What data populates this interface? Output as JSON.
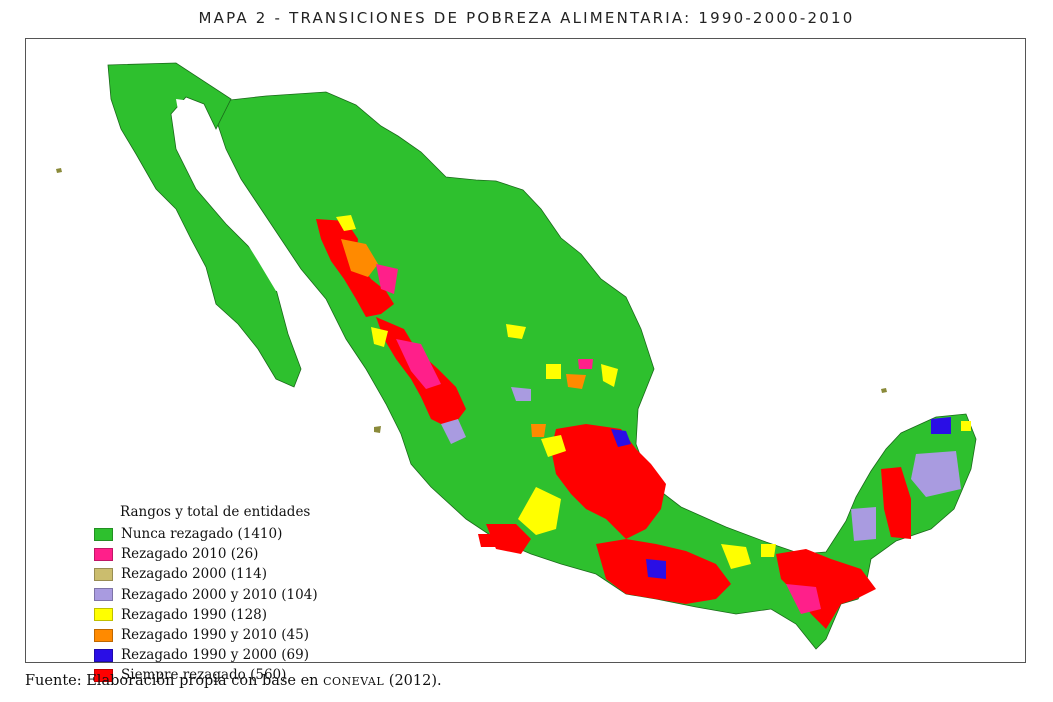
{
  "title": "MAPA 2 - TRANSICIONES DE POBREZA ALIMENTARIA: 1990-2000-2010",
  "legend": {
    "title": "Rangos y total de entidades",
    "items": [
      {
        "label": "Nunca rezagado (1410)",
        "color": "#2ec02e"
      },
      {
        "label": "Rezagado 2010 (26)",
        "color": "#ff1f8a"
      },
      {
        "label": "Rezagado 2000 (114)",
        "color": "#cbbd6e"
      },
      {
        "label": "Rezagado 2000 y 2010 (104)",
        "color": "#a99be0"
      },
      {
        "label": "Rezagado 1990 (128)",
        "color": "#ffff00"
      },
      {
        "label": "Rezagado 1990 y 2010 (45)",
        "color": "#ff8a00"
      },
      {
        "label": "Rezagado 1990 y 2000 (69)",
        "color": "#2a0ee6"
      },
      {
        "label": "Siempre rezagado (560)",
        "color": "#ff0000"
      }
    ]
  },
  "source": {
    "prefix": "Fuente: Elaboración propia con base en ",
    "org": "CONEVAL",
    "suffix": " (2012)."
  }
}
